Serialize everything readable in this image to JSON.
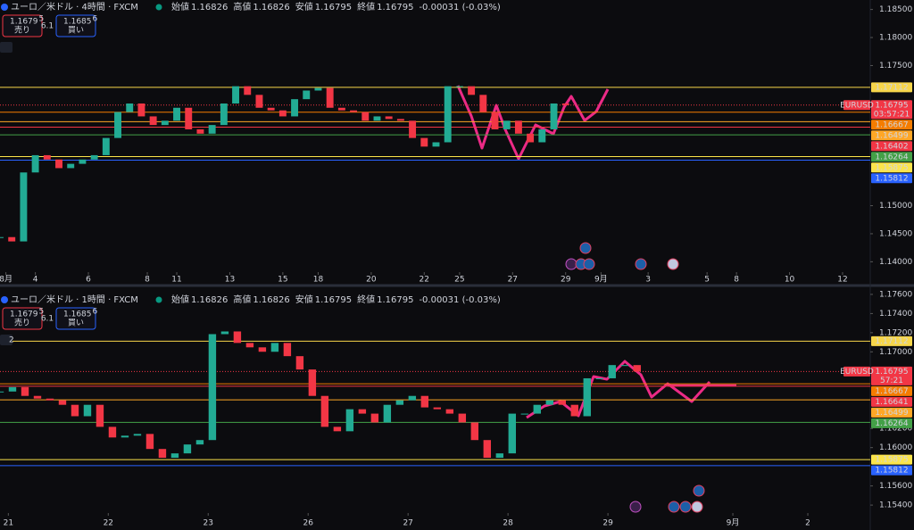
{
  "chart_data": [
    {
      "type": "candlestick",
      "title": "ユーロ／米ドル · 4時間 · FXCM",
      "ohlc": [
        {
          "label": "始値",
          "value": 1.16826
        },
        {
          "label": "高値",
          "value": 1.16826
        },
        {
          "label": "安値",
          "value": 1.16795
        },
        {
          "label": "終値",
          "value": 1.16795
        }
      ],
      "change": "-0.00031 (-0.03%)",
      "bid": {
        "price": 1.1679,
        "pip": 5,
        "label": "売り"
      },
      "ask": {
        "price": 1.1685,
        "pip": 6,
        "label": "買い"
      },
      "spread": 6.1,
      "x": [
        0,
        2,
        4,
        6,
        8,
        10,
        12,
        14,
        16,
        18,
        20,
        22,
        24,
        26,
        28,
        30,
        32,
        34,
        36,
        38,
        40,
        42,
        44,
        46,
        48,
        50,
        52,
        54,
        56,
        58,
        60,
        62,
        64,
        66,
        68,
        70,
        72,
        74,
        76,
        78,
        80,
        82,
        84,
        86,
        88,
        90,
        92,
        94,
        96
      ],
      "close": [
        1.1444,
        1.14363,
        1.15593,
        1.15901,
        1.15824,
        1.1567,
        1.15747,
        1.15824,
        1.15901,
        1.16208,
        1.1667,
        1.16823,
        1.16593,
        1.16439,
        1.16516,
        1.16747,
        1.16362,
        1.16285,
        1.16439,
        1.16823,
        1.17131,
        1.16977,
        1.16747,
        1.167,
        1.16593,
        1.169,
        1.17054,
        1.171,
        1.16747,
        1.167,
        1.1667,
        1.16516,
        1.16593,
        1.16547,
        1.16516,
        1.16208,
        1.16054,
        1.16131,
        1.17131,
        1.17131,
        1.16977,
        1.1667,
        1.16362,
        1.16516,
        1.16285,
        1.16131,
        1.16362,
        1.16823,
        1.16795
      ],
      "up_color": "#22ab94",
      "down_color": "#f23645",
      "xlim": [
        0,
        147.7
      ],
      "xticks": [
        {
          "value": 1,
          "label": "8月"
        },
        {
          "value": 6,
          "label": "4"
        },
        {
          "value": 15,
          "label": "6"
        },
        {
          "value": 25,
          "label": "8"
        },
        {
          "value": 30,
          "label": "11"
        },
        {
          "value": 39,
          "label": "13"
        },
        {
          "value": 48,
          "label": "15"
        },
        {
          "value": 54,
          "label": "18"
        },
        {
          "value": 63,
          "label": "20"
        },
        {
          "value": 72,
          "label": "22"
        },
        {
          "value": 78,
          "label": "25"
        },
        {
          "value": 87,
          "label": "27"
        },
        {
          "value": 96,
          "label": "29"
        },
        {
          "value": 102,
          "label": "9月"
        },
        {
          "value": 110,
          "label": "3"
        },
        {
          "value": 120,
          "label": "5"
        },
        {
          "value": 125,
          "label": "8"
        },
        {
          "value": 134,
          "label": "10"
        },
        {
          "value": 143,
          "label": "12"
        }
      ],
      "ylim": [
        1.13815,
        1.18669
      ],
      "yticks": [
        {
          "value": 1.185,
          "label": "1.18500"
        },
        {
          "value": 1.18,
          "label": "1.18000"
        },
        {
          "value": 1.175,
          "label": "1.17500"
        },
        {
          "value": 1.15,
          "label": "1.15000"
        },
        {
          "value": 1.145,
          "label": "1.14500"
        },
        {
          "value": 1.14,
          "label": "1.14000"
        }
      ],
      "levels": [
        {
          "value": 1.17112,
          "color": "#f7d64a"
        },
        {
          "value": 1.16667,
          "color": "#f57c00"
        },
        {
          "value": 1.16499,
          "color": "#ffa726"
        },
        {
          "value": 1.16402,
          "color": "#f23645"
        },
        {
          "value": 1.16264,
          "color": "#43a047"
        },
        {
          "value": 1.15875,
          "color": "#fbe44b"
        },
        {
          "value": 1.15812,
          "color": "#2962ff"
        }
      ],
      "last": {
        "value": 1.16795,
        "symbol": "EURUSD",
        "countdown": "03:57:21",
        "color": "#f23645"
      }
    },
    {
      "type": "candlestick",
      "title": "ユーロ／米ドル · 1時間 · FXCM",
      "ohlc": [
        {
          "label": "始値",
          "value": 1.16826
        },
        {
          "label": "高値",
          "value": 1.16826
        },
        {
          "label": "安値",
          "value": 1.16795
        },
        {
          "label": "終値",
          "value": 1.16795
        }
      ],
      "change": "-0.00031 (-0.03%)",
      "bid": {
        "price": 1.1679,
        "pip": 5,
        "label": "売り"
      },
      "ask": {
        "price": 1.1685,
        "pip": 6,
        "label": "買い"
      },
      "spread": 6.1,
      "indicator_count": 2,
      "x": [
        0,
        3,
        6,
        9,
        12,
        15,
        18,
        21,
        24,
        27,
        30,
        33,
        36,
        39,
        42,
        45,
        48,
        51,
        54,
        57,
        60,
        63,
        66,
        69,
        72,
        75,
        78,
        81,
        84,
        87,
        90,
        93,
        96,
        99,
        102,
        105,
        108,
        111,
        114,
        117,
        120,
        123,
        126,
        129,
        132,
        135,
        138,
        141,
        144,
        147,
        150,
        153
      ],
      "close": [
        1.16586,
        1.16632,
        1.1654,
        1.16512,
        1.16494,
        1.16447,
        1.16328,
        1.16447,
        1.16217,
        1.16106,
        1.16125,
        1.16143,
        1.15986,
        1.15894,
        1.1594,
        1.16033,
        1.16079,
        1.17185,
        1.17213,
        1.17093,
        1.17047,
        1.17001,
        1.17093,
        1.16955,
        1.16816,
        1.1654,
        1.16217,
        1.16171,
        1.16401,
        1.16355,
        1.16263,
        1.16447,
        1.16494,
        1.1654,
        1.1642,
        1.16401,
        1.16355,
        1.16263,
        1.16079,
        1.15894,
        1.1594,
        1.16355,
        1.16355,
        1.16447,
        1.16494,
        1.16447,
        1.16328,
        1.16724,
        1.16724,
        1.16862,
        1.16862,
        1.16795
      ],
      "up_color": "#22ab94",
      "down_color": "#f23645",
      "xlim": [
        0,
        209
      ],
      "xticks": [
        {
          "value": 2,
          "label": "21"
        },
        {
          "value": 26,
          "label": "22"
        },
        {
          "value": 50,
          "label": "23"
        },
        {
          "value": 74,
          "label": "26"
        },
        {
          "value": 98,
          "label": "27"
        },
        {
          "value": 122,
          "label": "28"
        },
        {
          "value": 146,
          "label": "29"
        },
        {
          "value": 176,
          "label": "9月"
        },
        {
          "value": 194,
          "label": "2"
        }
      ],
      "ylim": [
        1.15317,
        1.17646
      ],
      "yticks": [
        {
          "value": 1.176,
          "label": "1.17600"
        },
        {
          "value": 1.174,
          "label": "1.17400"
        },
        {
          "value": 1.172,
          "label": "1.17200"
        },
        {
          "value": 1.17,
          "label": "1.17000"
        },
        {
          "value": 1.162,
          "label": "1.16200"
        },
        {
          "value": 1.16,
          "label": "1.16000"
        },
        {
          "value": 1.156,
          "label": "1.15600"
        },
        {
          "value": 1.154,
          "label": "1.15400"
        }
      ],
      "levels": [
        {
          "value": 1.17112,
          "color": "#f7d64a"
        },
        {
          "value": 1.16667,
          "color": "#f57c00"
        },
        {
          "value": 1.16641,
          "color": "#f23645"
        },
        {
          "value": 1.16499,
          "color": "#ffa726"
        },
        {
          "value": 1.16264,
          "color": "#43a047"
        },
        {
          "value": 1.15875,
          "color": "#fbe44b"
        },
        {
          "value": 1.15812,
          "color": "#2962ff"
        }
      ],
      "last": {
        "value": 1.16795,
        "symbol": "EURUSD",
        "countdown": "57:21",
        "color": "#f23645"
      }
    }
  ]
}
